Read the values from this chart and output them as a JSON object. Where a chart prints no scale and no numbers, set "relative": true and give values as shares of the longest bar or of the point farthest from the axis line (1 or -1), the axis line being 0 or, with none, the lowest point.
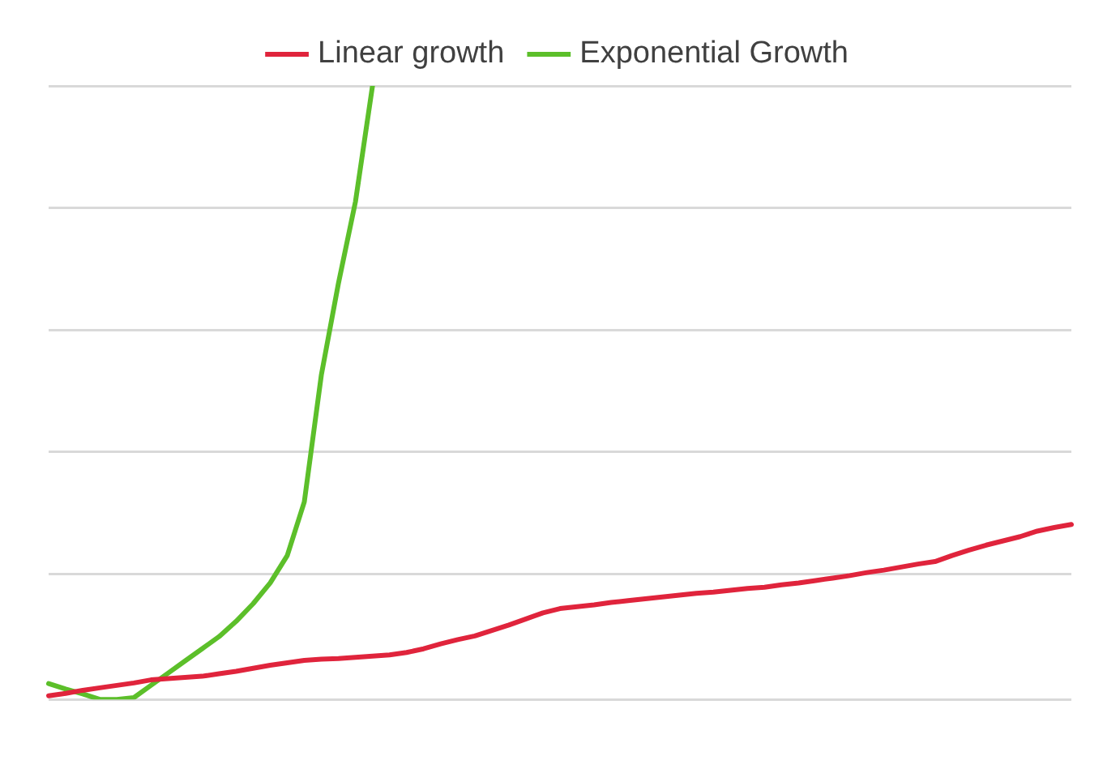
{
  "chart_data": {
    "type": "line",
    "relative": true,
    "grid": "y",
    "legend": "top",
    "marker": "none",
    "line_style": "solid",
    "categories": [
      null,
      null,
      null,
      null,
      null,
      null,
      null,
      null,
      null,
      null,
      null,
      null,
      null,
      null,
      null,
      null,
      null,
      null,
      null,
      null,
      null,
      null,
      null,
      null,
      null,
      null,
      null,
      null,
      null,
      null,
      null,
      null,
      null,
      null,
      null,
      null,
      null,
      null,
      null,
      null,
      null,
      null,
      null,
      null,
      null,
      null,
      null,
      null,
      null,
      null,
      null,
      null,
      null,
      null,
      null,
      null,
      null,
      null,
      null,
      null,
      null
    ],
    "series": [
      {
        "name": "Linear growth",
        "color": "#e0243c",
        "values": [
          0,
          0.004,
          0.009,
          0.013,
          0.017,
          0.021,
          0.026,
          0.028,
          0.03,
          0.032,
          0.036,
          0.04,
          0.045,
          0.05,
          0.054,
          0.058,
          0.06,
          0.061,
          0.063,
          0.065,
          0.067,
          0.071,
          0.077,
          0.085,
          0.092,
          0.098,
          0.107,
          0.116,
          0.126,
          0.136,
          0.143,
          0.146,
          0.149,
          0.153,
          0.156,
          0.159,
          0.162,
          0.165,
          0.168,
          0.17,
          0.173,
          0.176,
          0.178,
          0.182,
          0.185,
          0.189,
          0.193,
          0.197,
          0.202,
          0.206,
          0.211,
          0.216,
          0.22,
          0.23,
          0.239,
          0.247,
          0.254,
          0.261,
          0.27,
          0.276,
          0.281
        ]
      },
      {
        "name": "Exponential Growth",
        "color": "#5cbf2a",
        "values": [
          0.02,
          0.011,
          0.003,
          -0.006,
          -0.006,
          -0.003,
          0.017,
          0.037,
          0.057,
          0.077,
          0.097,
          0.122,
          0.151,
          0.185,
          0.23,
          0.318,
          0.526,
          0.676,
          0.81,
          1,
          null,
          null,
          null,
          null,
          null,
          null,
          null,
          null,
          null,
          null,
          null,
          null,
          null,
          null,
          null,
          null,
          null,
          null,
          null,
          null,
          null,
          null,
          null,
          null,
          null,
          null,
          null,
          null,
          null,
          null,
          null,
          null,
          null,
          null,
          null,
          null,
          null,
          null,
          null,
          null,
          null
        ]
      }
    ]
  }
}
